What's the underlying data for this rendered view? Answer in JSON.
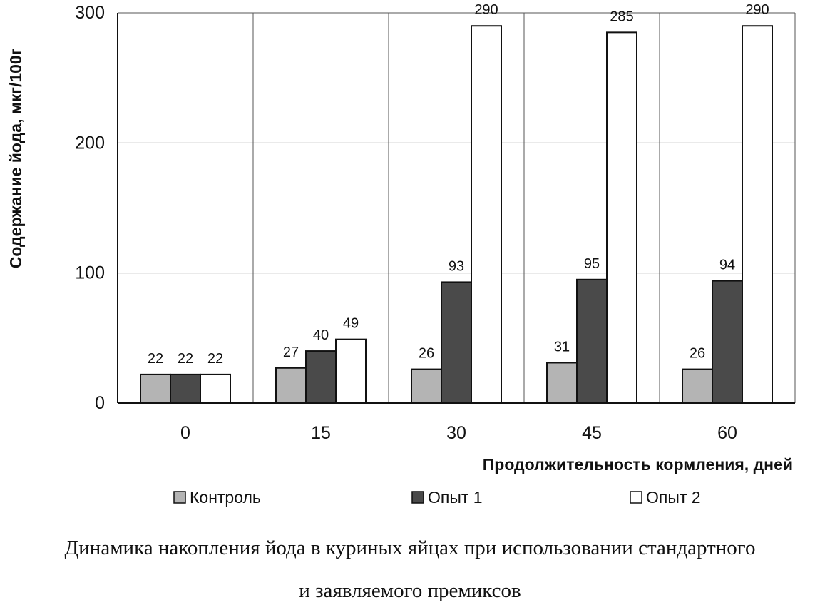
{
  "chart_data": {
    "type": "bar",
    "categories": [
      "0",
      "15",
      "30",
      "45",
      "60"
    ],
    "series": [
      {
        "name": "Контроль",
        "values": [
          22,
          27,
          26,
          31,
          26
        ],
        "color": "#b4b4b4"
      },
      {
        "name": "Опыт 1",
        "values": [
          22,
          40,
          93,
          95,
          94
        ],
        "color": "#4a4a4a"
      },
      {
        "name": "Опыт 2",
        "values": [
          22,
          49,
          290,
          285,
          290
        ],
        "color": "#ffffff"
      }
    ],
    "xlabel": "Продолжительность кормления, дней",
    "ylabel": "Содержание йода, мкг/100г",
    "ylim": [
      0,
      300
    ],
    "yticks": [
      "0",
      "100",
      "200",
      "300"
    ],
    "grid": true,
    "legend_position": "bottom"
  },
  "caption": {
    "line1": "Динамика накопления йода в куриных яйцах при использовании стандартного",
    "line2": "и заявляемого премиксов"
  }
}
